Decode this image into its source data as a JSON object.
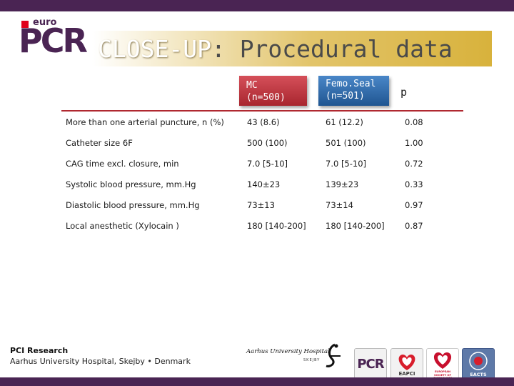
{
  "slide": {
    "title_accent": "CLOSE-UP",
    "title_rest": ": Procedural data"
  },
  "brand": {
    "euro": "euro",
    "pcr": "PCR"
  },
  "table": {
    "headers": [
      {
        "line1": "MC",
        "line2": "(n=500)"
      },
      {
        "line1": "Femo.Seal",
        "line2": "(n=501)"
      },
      {
        "label": "p"
      }
    ],
    "rows": [
      {
        "label": "More than one arterial puncture, n (%)",
        "mc": "43 (8.6)",
        "fs": "61 (12.2)",
        "p": "0.08"
      },
      {
        "label": "Catheter size 6F",
        "mc": "500 (100)",
        "fs": "501 (100)",
        "p": "1.00"
      },
      {
        "label": "CAG time excl. closure, min",
        "mc": "7.0 [5-10]",
        "fs": "7.0 [5-10]",
        "p": "0.72"
      },
      {
        "label": "Systolic blood pressure, mm.Hg",
        "mc": "140±23",
        "fs": "139±23",
        "p": "0.33"
      },
      {
        "label": "Diastolic blood pressure, mm.Hg",
        "mc": "73±13",
        "fs": "73±14",
        "p": "0.97"
      },
      {
        "label": "Local anesthetic (Xylocain )",
        "mc": "180 [140-200]",
        "fs": "180 [140-200]",
        "p": "0.87"
      }
    ]
  },
  "footer": {
    "org_line1": "PCI Research",
    "org_line2": "Aarhus University Hospital, Skejby • Denmark",
    "hospital_logo_text": "Aarhus University Hospital",
    "hospital_logo_sub": "SKEJBY",
    "badges": [
      {
        "name": "PCR",
        "label": "PCR"
      },
      {
        "name": "EAPCI",
        "label": "EAPCI"
      },
      {
        "name": "ESC",
        "label": "EUROPEAN SOCIETY OF CARDIOLOGY"
      },
      {
        "name": "EACTS",
        "label": "EACTS"
      }
    ]
  },
  "colors": {
    "brand_purple": "#4a2453",
    "mc_red": "#b02830",
    "femoseal_blue": "#2a66a8",
    "title_gold": "#d8b23c"
  }
}
